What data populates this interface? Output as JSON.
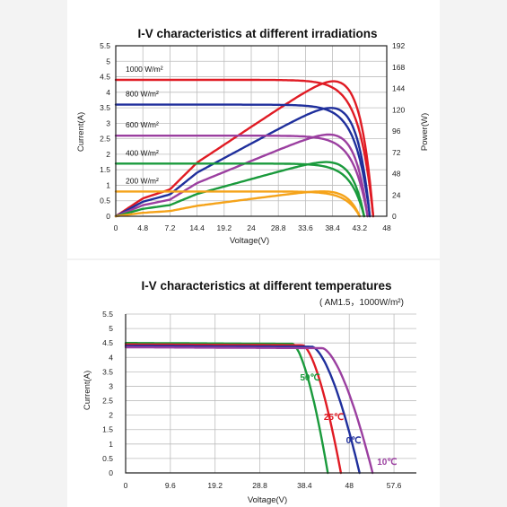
{
  "chart_data": [
    {
      "type": "line",
      "title": "I-V characteristics at different irradiations",
      "xlabel": "Voltage(V)",
      "ylabel": "Current(A)",
      "y2label": "Power(W)",
      "xticks": [
        "0",
        "4.8",
        "7.2",
        "14.4",
        "19.2",
        "24",
        "28.8",
        "33.6",
        "38.4",
        "43.2",
        "48"
      ],
      "yticks": [
        "0",
        "0.5",
        "1",
        "1.5",
        "2",
        "2.5",
        "3",
        "3.5",
        "4",
        "4.5",
        "5",
        "5.5"
      ],
      "y2ticks": [
        "0",
        "24",
        "48",
        "72",
        "96",
        "120",
        "144",
        "168",
        "192"
      ],
      "xlim": [
        0,
        48
      ],
      "ylim": [
        0,
        5.5
      ],
      "y2lim": [
        0,
        192
      ],
      "grid": true,
      "series": [
        {
          "name": "1000 W/m²",
          "color": "#e01b24",
          "isc": 4.4,
          "voc": 45.6,
          "pmax": 152,
          "vmp": 38.0
        },
        {
          "name": "800 W/m²",
          "color": "#1f2f9c",
          "isc": 3.6,
          "voc": 45.0,
          "pmax": 122,
          "vmp": 38.0
        },
        {
          "name": "600 W/m²",
          "color": "#9b3fa0",
          "isc": 2.6,
          "voc": 44.6,
          "pmax": 92,
          "vmp": 38.0
        },
        {
          "name": "400 W/m²",
          "color": "#1a9a3c",
          "isc": 1.7,
          "voc": 44.0,
          "pmax": 61,
          "vmp": 37.5
        },
        {
          "name": "200 W/m²",
          "color": "#f5a31a",
          "isc": 0.8,
          "voc": 43.2,
          "pmax": 28,
          "vmp": 37.0
        }
      ]
    },
    {
      "type": "line",
      "title": "I-V characteristics at different temperatures",
      "subtitle": "( AM1.5，1000W/m²)",
      "xlabel": "Voltage(V)",
      "ylabel": "Current(A)",
      "xticks": [
        "0",
        "9.6",
        "19.2",
        "28.8",
        "38.4",
        "48",
        "57.6"
      ],
      "yticks": [
        "0",
        "0.5",
        "1",
        "1.5",
        "2",
        "2.5",
        "3",
        "3.5",
        "4",
        "4.5",
        "5",
        "5.5"
      ],
      "xlim": [
        0,
        57.6
      ],
      "ylim": [
        0,
        5.5
      ],
      "grid": true,
      "series": [
        {
          "name": "50℃",
          "color": "#1a9a3c",
          "isc": 4.5,
          "voc": 43.4,
          "knee": 35.8
        },
        {
          "name": "25℃",
          "color": "#e01b24",
          "isc": 4.45,
          "voc": 46.2,
          "knee": 38.0
        },
        {
          "name": "0℃",
          "color": "#1f2f9c",
          "isc": 4.4,
          "voc": 50.2,
          "knee": 40.0
        },
        {
          "name": "10℃",
          "color": "#9b3fa0",
          "isc": 4.35,
          "voc": 53.0,
          "knee": 42.2
        }
      ]
    }
  ]
}
